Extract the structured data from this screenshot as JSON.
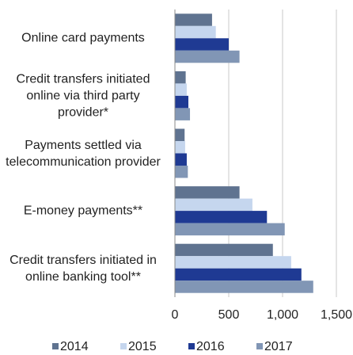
{
  "chart_data": {
    "type": "hbar",
    "categories": [
      "Online card payments",
      "Credit transfers initiated online via third party provider*",
      "Payments settled via telecommunication provider",
      "E-money payments**",
      "Credit transfers initiated in online banking tool**"
    ],
    "series": [
      {
        "name": "2014",
        "color": "#5f7390",
        "values": [
          345,
          100,
          90,
          600,
          910
        ]
      },
      {
        "name": "2015",
        "color": "#c5d6ee",
        "values": [
          380,
          110,
          95,
          720,
          1080
        ]
      },
      {
        "name": "2016",
        "color": "#1f3a93",
        "values": [
          500,
          125,
          110,
          855,
          1175
        ]
      },
      {
        "name": "2017",
        "color": "#8196b5",
        "values": [
          600,
          140,
          120,
          1020,
          1285
        ]
      }
    ],
    "xlim": [
      0,
      1500
    ],
    "xticks": [
      0,
      500,
      {
        "value": 1000,
        "label": "1,000"
      },
      {
        "value": 1500,
        "label": "1,500"
      }
    ],
    "grid": true,
    "legend": "bottom"
  }
}
